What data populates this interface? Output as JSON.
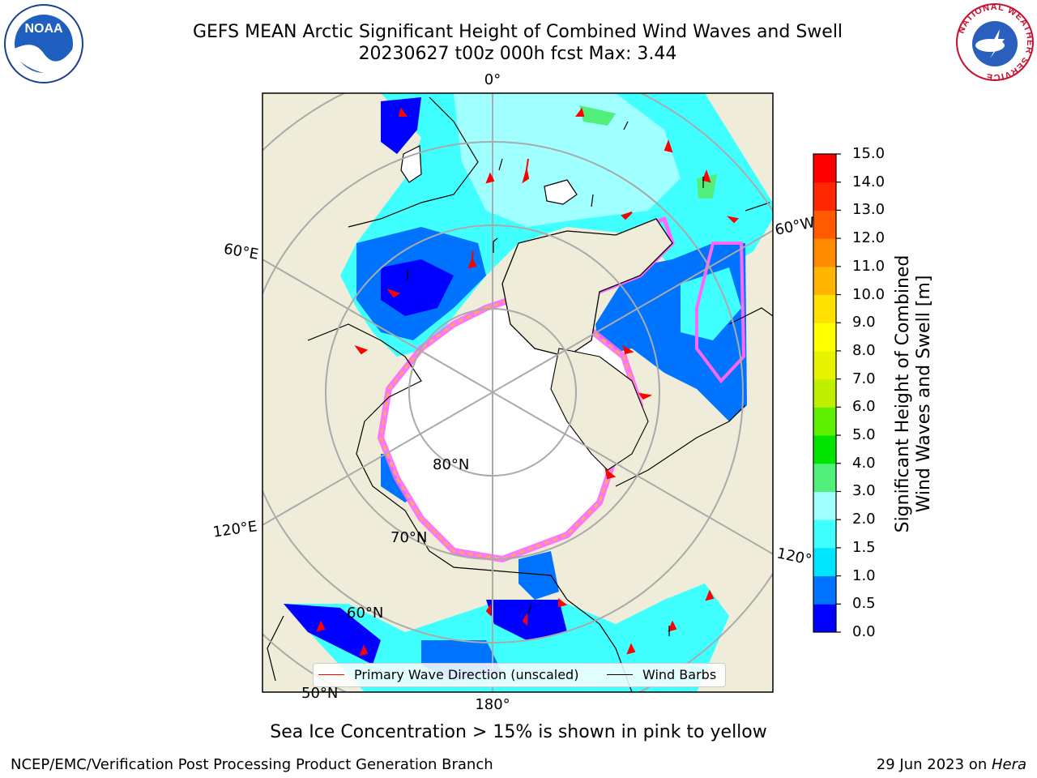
{
  "title": {
    "line1": "GEFS MEAN Arctic Significant Height of Combined Wind Waves and Swell",
    "line2": "20230627 t00z 000h fcst   Max: 3.44"
  },
  "logos": {
    "left": {
      "icon": "noaa-logo",
      "text": "NOAA"
    },
    "right": {
      "icon": "nws-logo",
      "text": "NATIONAL WEATHER SERVICE"
    }
  },
  "map": {
    "projection": "north-polar-stereographic",
    "center": "North Pole",
    "longitude_labels": [
      "0°",
      "60°W",
      "120°W",
      "180°",
      "120°E",
      "60°E"
    ],
    "latitude_labels": [
      "80°N",
      "70°N",
      "60°N",
      "50°N"
    ],
    "land_color": "#efedd9",
    "ocean_nodata_color": "#ffffff",
    "ice_note": "Sea Ice Concentration > 15% is shown in pink to yellow"
  },
  "legend": {
    "primary_wave_label": "Primary Wave Direction (unscaled)",
    "primary_wave_color": "#ff0000",
    "wind_barbs_label": "Wind Barbs",
    "wind_barbs_color": "#000000"
  },
  "colorbar": {
    "label_line1": "Significant Height of Combined",
    "label_line2": "Wind Waves and Swell [m]",
    "ticks": [
      "0.0",
      "0.5",
      "1.0",
      "1.5",
      "2.0",
      "3.0",
      "4.0",
      "5.0",
      "6.0",
      "7.0",
      "8.0",
      "9.0",
      "10.0",
      "11.0",
      "12.0",
      "13.0",
      "14.0",
      "15.0"
    ],
    "colors": [
      "#0000ff",
      "#0073ff",
      "#00e5ff",
      "#40ffff",
      "#a0ffff",
      "#50f07a",
      "#00e400",
      "#5ff000",
      "#c0f000",
      "#e6f200",
      "#ffff00",
      "#ffe000",
      "#ffb400",
      "#ff8c00",
      "#ff5a00",
      "#ff2800",
      "#ff0000"
    ]
  },
  "footer": {
    "left": "NCEP/EMC/Verification Post Processing Product Generation Branch",
    "right_prefix": "29 Jun 2023 on ",
    "right_host": "Hera"
  }
}
